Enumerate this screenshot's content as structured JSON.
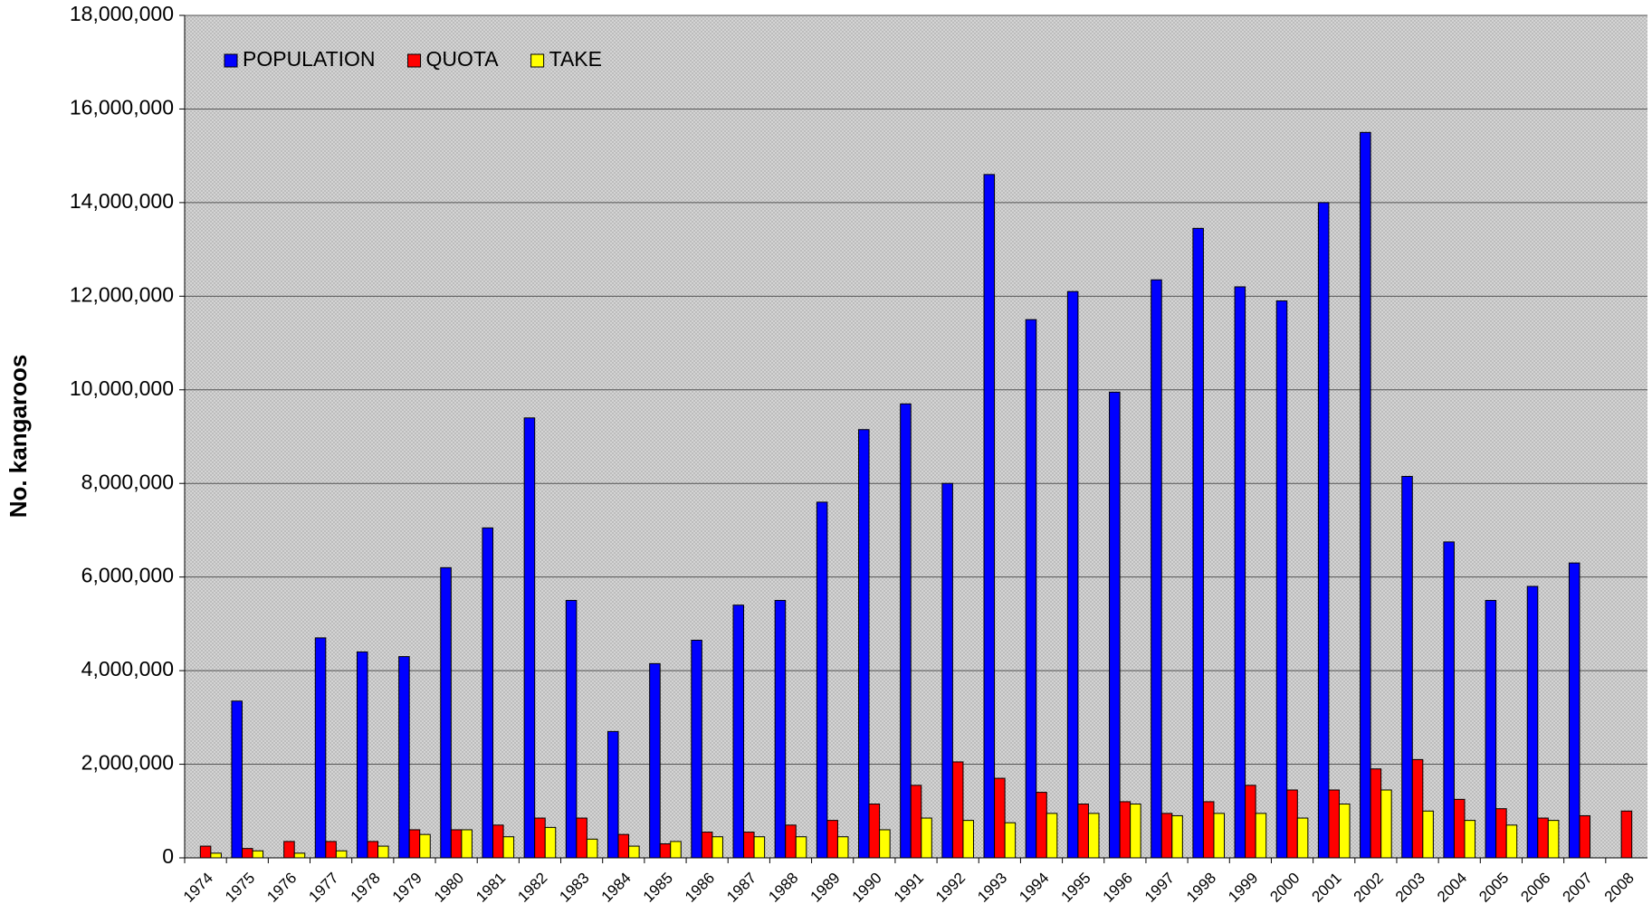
{
  "chart_data": {
    "type": "bar",
    "y_label": "No. kangaroos",
    "categories": [
      "1974",
      "1975",
      "1976",
      "1977",
      "1978",
      "1979",
      "1980",
      "1981",
      "1982",
      "1983",
      "1984",
      "1985",
      "1986",
      "1987",
      "1988",
      "1989",
      "1990",
      "1991",
      "1992",
      "1993",
      "1994",
      "1995",
      "1996",
      "1997",
      "1998",
      "1999",
      "2000",
      "2001",
      "2002",
      "2003",
      "2004",
      "2005",
      "2006",
      "2007",
      "2008"
    ],
    "series": [
      {
        "name": "POPULATION",
        "color": "#0000ff",
        "values": [
          null,
          3350000,
          null,
          4700000,
          4400000,
          4300000,
          6200000,
          7050000,
          9400000,
          5500000,
          2700000,
          4150000,
          4650000,
          5400000,
          5500000,
          7600000,
          9150000,
          9700000,
          8000000,
          14600000,
          11500000,
          12100000,
          9950000,
          12350000,
          13450000,
          12200000,
          11900000,
          14000000,
          15500000,
          8150000,
          6750000,
          5500000,
          5800000,
          6300000,
          null
        ]
      },
      {
        "name": "QUOTA",
        "color": "#ff0000",
        "values": [
          250000,
          200000,
          350000,
          350000,
          350000,
          600000,
          600000,
          700000,
          850000,
          850000,
          500000,
          300000,
          550000,
          550000,
          700000,
          800000,
          1150000,
          1550000,
          2050000,
          1700000,
          1400000,
          1150000,
          1200000,
          950000,
          1200000,
          1550000,
          1450000,
          1450000,
          1900000,
          2100000,
          1250000,
          1050000,
          850000,
          900000,
          1000000
        ]
      },
      {
        "name": "TAKE",
        "color": "#ffff00",
        "values": [
          100000,
          150000,
          100000,
          150000,
          250000,
          500000,
          600000,
          450000,
          650000,
          400000,
          250000,
          350000,
          450000,
          450000,
          450000,
          450000,
          600000,
          850000,
          800000,
          750000,
          950000,
          950000,
          1150000,
          900000,
          950000,
          950000,
          850000,
          1150000,
          1450000,
          1000000,
          800000,
          700000,
          800000,
          null,
          null
        ]
      }
    ],
    "ylim": [
      0,
      18000000
    ],
    "yticks": [
      0,
      {
        "value": 2000000,
        "label": "2,000,000"
      },
      {
        "value": 4000000,
        "label": "4,000,000"
      },
      {
        "value": 6000000,
        "label": "6,000,000"
      },
      {
        "value": 8000000,
        "label": "8,000,000"
      },
      {
        "value": 10000000,
        "label": "10,000,000"
      },
      {
        "value": 12000000,
        "label": "12,000,000"
      },
      {
        "value": 14000000,
        "label": "14,000,000"
      },
      {
        "value": 16000000,
        "label": "16,000,000"
      },
      {
        "value": 18000000,
        "label": "18,000,000"
      }
    ],
    "grid": true,
    "legend": "top-left"
  }
}
